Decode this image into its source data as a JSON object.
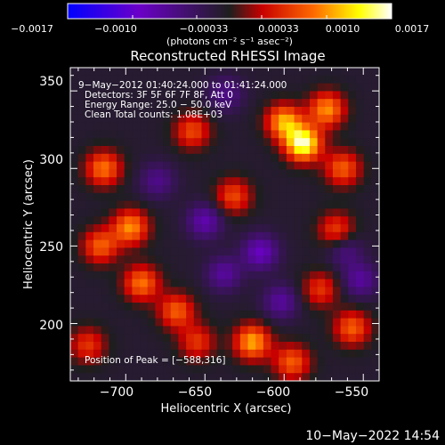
{
  "chart_data": {
    "type": "heatmap",
    "title": "Reconstructed RHESSI Image",
    "xlabel": "Heliocentric X (arcsec)",
    "ylabel": "Heliocentric Y (arcsec)",
    "xlim": [
      -735,
      -540
    ],
    "ylim": [
      163,
      365
    ],
    "x_ticks": [
      -700,
      -650,
      -600,
      -550
    ],
    "y_ticks": [
      200,
      250,
      300,
      350
    ],
    "x_tick_labels": [
      "−700",
      "−650",
      "−600",
      "−550"
    ],
    "y_tick_labels": [
      "200",
      "250",
      "300",
      "350"
    ],
    "colorbar": {
      "range": [
        -0.0017,
        0.0017
      ],
      "tick_labels": [
        "−0.0017",
        "−0.0010",
        "−0.00033",
        "0.00033",
        "0.0010",
        "0.0017"
      ],
      "unit_label": "(photons cm⁻² s⁻¹ asec⁻²)",
      "colors": [
        "#0000ff",
        "#6b00c8",
        "#1e1e1e",
        "#c80000",
        "#ff6a00",
        "#ffff00",
        "#ffffff"
      ]
    },
    "annotations": [
      "9−May−2012 01:40:24.000  to 01:41:24.000",
      "Detectors: 3F 5F 6F 7F 8F, Att 0",
      "Energy Range: 25.0 − 50.0 keV",
      "Clean    Total counts: 1.08E+03"
    ],
    "peak_label": "Position of Peak = [−588,316]",
    "peak": {
      "x": -588,
      "y": 316
    },
    "hot_spots": [
      {
        "x": -588,
        "y": 316,
        "v": 0.0017
      },
      {
        "x": -600,
        "y": 330,
        "v": 0.0012
      },
      {
        "x": -573,
        "y": 338,
        "v": 0.0011
      },
      {
        "x": -563,
        "y": 300,
        "v": 0.0009
      },
      {
        "x": -714,
        "y": 300,
        "v": 0.001
      },
      {
        "x": -697,
        "y": 262,
        "v": 0.0011
      },
      {
        "x": -716,
        "y": 250,
        "v": 0.0009
      },
      {
        "x": -658,
        "y": 324,
        "v": 0.0008
      },
      {
        "x": -690,
        "y": 226,
        "v": 0.001
      },
      {
        "x": -668,
        "y": 208,
        "v": 0.0009
      },
      {
        "x": -620,
        "y": 188,
        "v": 0.0012
      },
      {
        "x": -595,
        "y": 175,
        "v": 0.0009
      },
      {
        "x": -557,
        "y": 197,
        "v": 0.0009
      },
      {
        "x": -632,
        "y": 282,
        "v": 0.0008
      },
      {
        "x": -567,
        "y": 260,
        "v": 0.0008
      },
      {
        "x": -577,
        "y": 222,
        "v": 0.0007
      },
      {
        "x": -724,
        "y": 186,
        "v": 0.0007
      },
      {
        "x": -655,
        "y": 188,
        "v": 0.0007
      }
    ],
    "cold_spots": [
      {
        "x": -650,
        "y": 266,
        "v": -0.0007
      },
      {
        "x": -615,
        "y": 246,
        "v": -0.0008
      },
      {
        "x": -638,
        "y": 232,
        "v": -0.0006
      },
      {
        "x": -602,
        "y": 214,
        "v": -0.0006
      },
      {
        "x": -552,
        "y": 228,
        "v": -0.0006
      },
      {
        "x": -680,
        "y": 292,
        "v": -0.0005
      },
      {
        "x": -637,
        "y": 348,
        "v": -0.0005
      },
      {
        "x": -562,
        "y": 248,
        "v": -0.0005
      }
    ]
  },
  "timestamp": "10−May−2022 14:54"
}
